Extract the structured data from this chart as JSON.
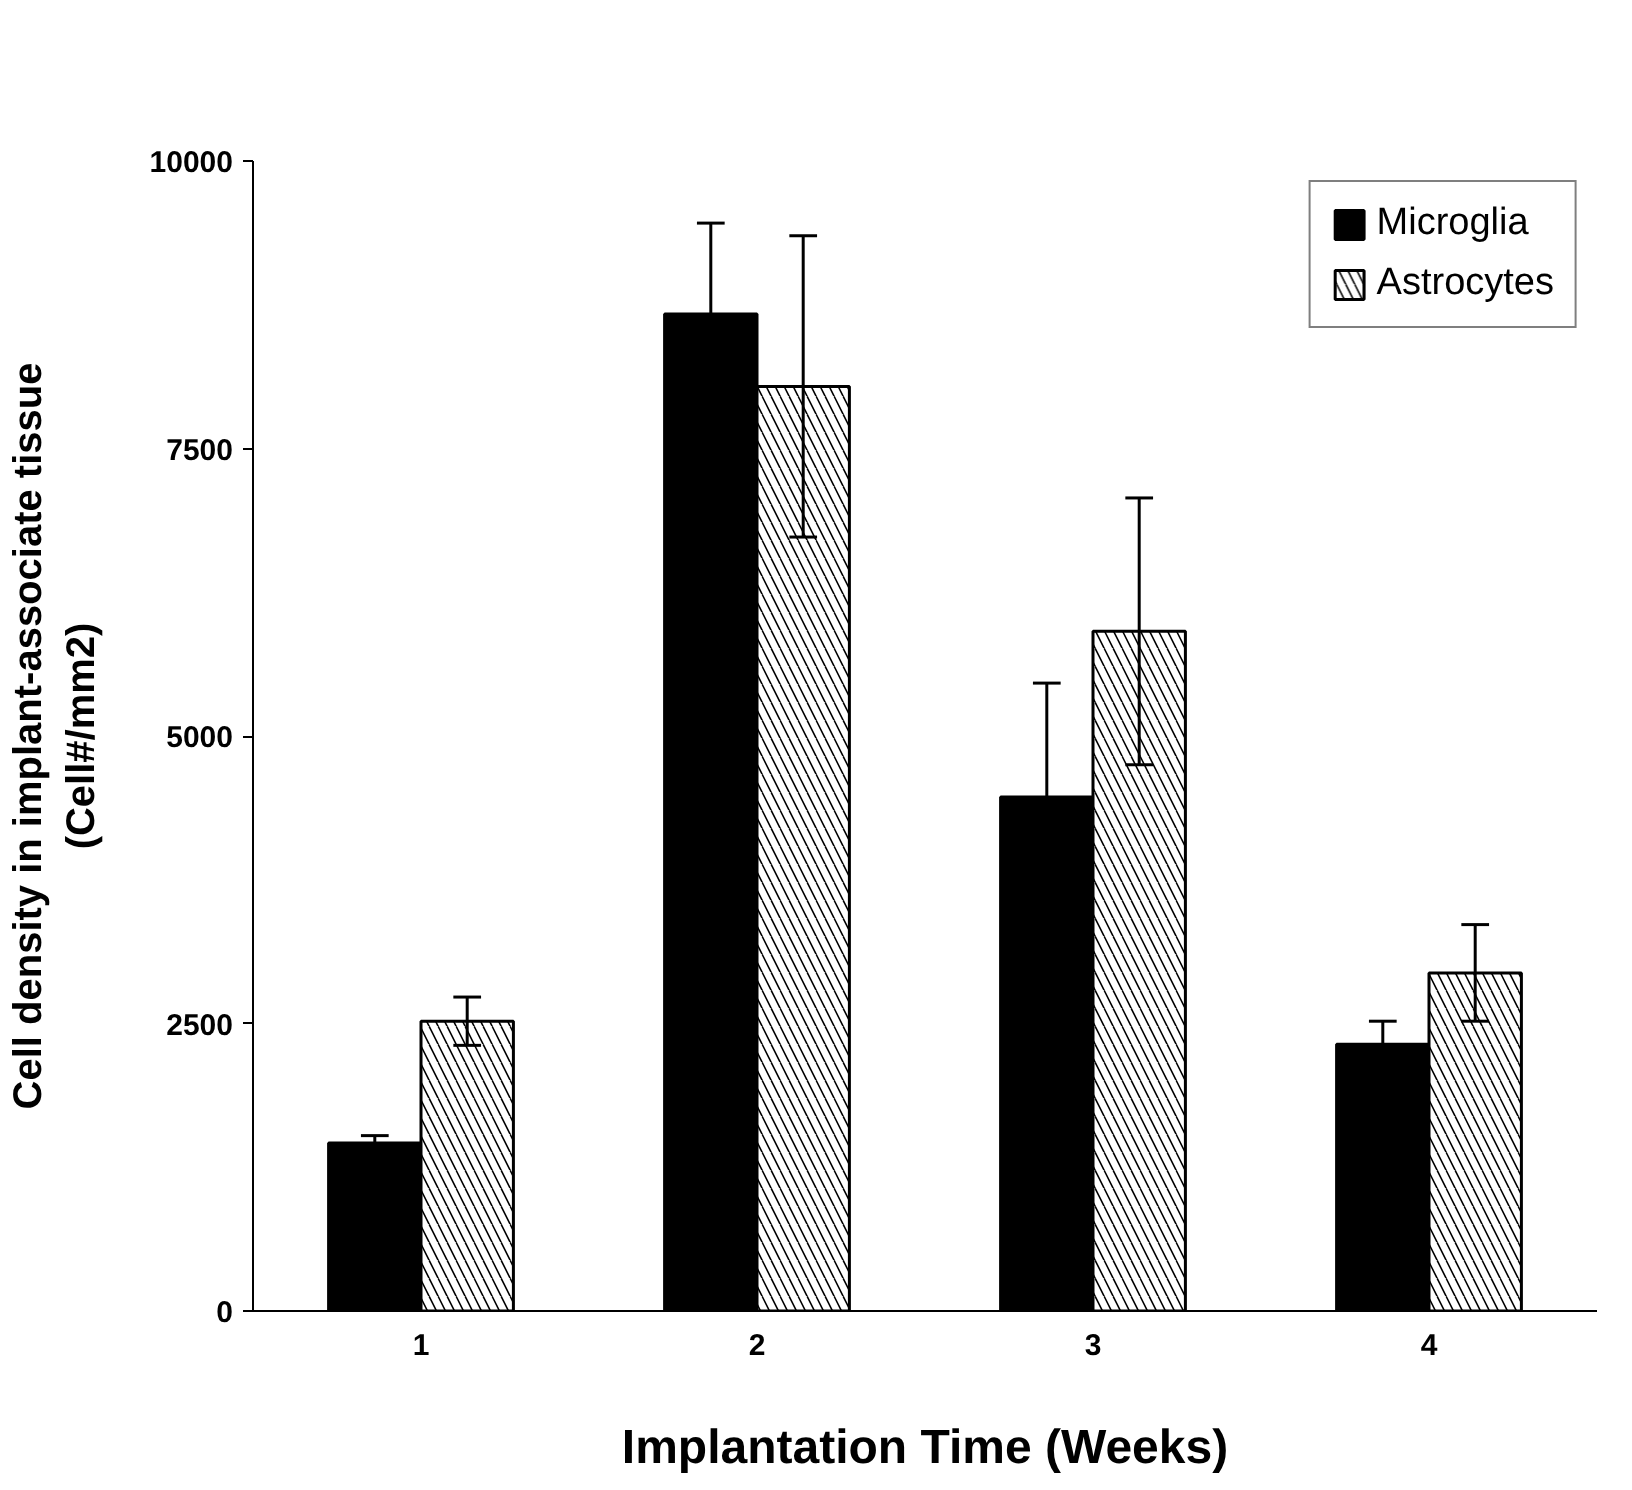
{
  "chart_data": {
    "type": "bar",
    "xlabel": "Implantation Time (Weeks)",
    "ylabel": "Cell density in implant-associate tissue\n(Cell#/mm2)",
    "categories": [
      "1",
      "2",
      "3",
      "4"
    ],
    "series": [
      {
        "name": "Microglia",
        "color": "#000000",
        "values": [
          1460,
          8670,
          4470,
          2320
        ],
        "errors": [
          65,
          790,
          990,
          200
        ]
      },
      {
        "name": "Astrocytes",
        "color": "#ffffff",
        "values": [
          2520,
          8040,
          5910,
          2940
        ],
        "errors": [
          210,
          1310,
          1160,
          420
        ]
      }
    ],
    "ylim": [
      0,
      10000
    ],
    "yticks": [
      0,
      2500,
      5000,
      7500,
      10000
    ],
    "grid": false,
    "legend": "top right"
  }
}
